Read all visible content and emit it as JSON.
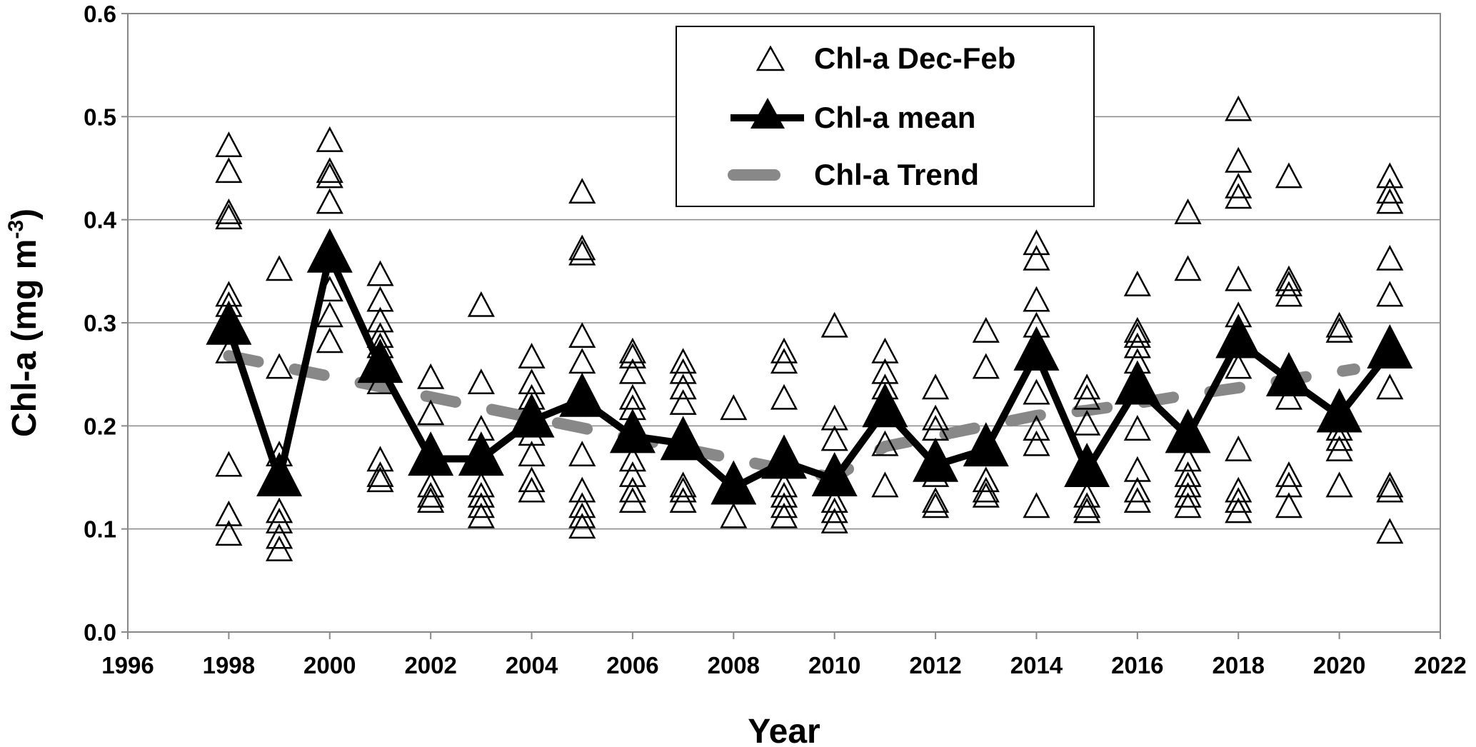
{
  "chart_data": {
    "type": "scatter",
    "title": "",
    "xlabel": "Year",
    "ylabel_main": "Chl-a (mg m",
    "ylabel_sup": "-3",
    "ylabel_end": ")",
    "xlim": [
      1996,
      2022
    ],
    "ylim": [
      0.0,
      0.6
    ],
    "x_ticks": [
      1996,
      1998,
      2000,
      2002,
      2004,
      2006,
      2008,
      2010,
      2012,
      2014,
      2016,
      2018,
      2020,
      2022
    ],
    "y_ticks": [
      "0.0",
      "0.1",
      "0.2",
      "0.3",
      "0.4",
      "0.5",
      "0.6"
    ],
    "y_tick_values": [
      0.0,
      0.1,
      0.2,
      0.3,
      0.4,
      0.5,
      0.6
    ],
    "grid": "horizontal",
    "legend_position": "top-center",
    "legend": [
      {
        "key": "raw",
        "label": "Chl-a Dec-Feb"
      },
      {
        "key": "mean",
        "label": "Chl-a mean"
      },
      {
        "key": "trend",
        "label": "Chl-a Trend"
      }
    ],
    "series": [
      {
        "key": "raw",
        "name": "Chl-a Dec-Feb",
        "style": "open-triangle",
        "color": "#000000",
        "points": [
          [
            1998,
            0.47
          ],
          [
            1998,
            0.445
          ],
          [
            1998,
            0.405
          ],
          [
            1998,
            0.4
          ],
          [
            1998,
            0.325
          ],
          [
            1998,
            0.315
          ],
          [
            1998,
            0.27
          ],
          [
            1998,
            0.16
          ],
          [
            1998,
            0.112
          ],
          [
            1998,
            0.093
          ],
          [
            1999,
            0.35
          ],
          [
            1999,
            0.255
          ],
          [
            1999,
            0.17
          ],
          [
            1999,
            0.115
          ],
          [
            1999,
            0.105
          ],
          [
            1999,
            0.09
          ],
          [
            1999,
            0.078
          ],
          [
            2000,
            0.475
          ],
          [
            2000,
            0.445
          ],
          [
            2000,
            0.44
          ],
          [
            2000,
            0.415
          ],
          [
            2000,
            0.33
          ],
          [
            2000,
            0.305
          ],
          [
            2000,
            0.28
          ],
          [
            2001,
            0.345
          ],
          [
            2001,
            0.32
          ],
          [
            2001,
            0.3
          ],
          [
            2001,
            0.285
          ],
          [
            2001,
            0.275
          ],
          [
            2001,
            0.24
          ],
          [
            2001,
            0.165
          ],
          [
            2001,
            0.15
          ],
          [
            2001,
            0.145
          ],
          [
            2002,
            0.245
          ],
          [
            2002,
            0.21
          ],
          [
            2002,
            0.14
          ],
          [
            2002,
            0.13
          ],
          [
            2002,
            0.125
          ],
          [
            2003,
            0.315
          ],
          [
            2003,
            0.24
          ],
          [
            2003,
            0.195
          ],
          [
            2003,
            0.14
          ],
          [
            2003,
            0.13
          ],
          [
            2003,
            0.12
          ],
          [
            2003,
            0.11
          ],
          [
            2004,
            0.265
          ],
          [
            2004,
            0.24
          ],
          [
            2004,
            0.225
          ],
          [
            2004,
            0.19
          ],
          [
            2004,
            0.17
          ],
          [
            2004,
            0.145
          ],
          [
            2004,
            0.135
          ],
          [
            2005,
            0.425
          ],
          [
            2005,
            0.37
          ],
          [
            2005,
            0.365
          ],
          [
            2005,
            0.285
          ],
          [
            2005,
            0.26
          ],
          [
            2005,
            0.17
          ],
          [
            2005,
            0.135
          ],
          [
            2005,
            0.12
          ],
          [
            2005,
            0.11
          ],
          [
            2005,
            0.1
          ],
          [
            2006,
            0.27
          ],
          [
            2006,
            0.265
          ],
          [
            2006,
            0.25
          ],
          [
            2006,
            0.225
          ],
          [
            2006,
            0.215
          ],
          [
            2006,
            0.165
          ],
          [
            2006,
            0.15
          ],
          [
            2006,
            0.135
          ],
          [
            2006,
            0.125
          ],
          [
            2007,
            0.26
          ],
          [
            2007,
            0.25
          ],
          [
            2007,
            0.235
          ],
          [
            2007,
            0.22
          ],
          [
            2007,
            0.14
          ],
          [
            2007,
            0.135
          ],
          [
            2007,
            0.125
          ],
          [
            2008,
            0.215
          ],
          [
            2008,
            0.11
          ],
          [
            2009,
            0.27
          ],
          [
            2009,
            0.26
          ],
          [
            2009,
            0.225
          ],
          [
            2009,
            0.14
          ],
          [
            2009,
            0.13
          ],
          [
            2009,
            0.12
          ],
          [
            2009,
            0.11
          ],
          [
            2010,
            0.295
          ],
          [
            2010,
            0.205
          ],
          [
            2010,
            0.185
          ],
          [
            2010,
            0.125
          ],
          [
            2010,
            0.115
          ],
          [
            2010,
            0.105
          ],
          [
            2011,
            0.27
          ],
          [
            2011,
            0.25
          ],
          [
            2011,
            0.235
          ],
          [
            2011,
            0.18
          ],
          [
            2011,
            0.14
          ],
          [
            2012,
            0.235
          ],
          [
            2012,
            0.205
          ],
          [
            2012,
            0.195
          ],
          [
            2012,
            0.15
          ],
          [
            2012,
            0.125
          ],
          [
            2012,
            0.12
          ],
          [
            2013,
            0.29
          ],
          [
            2013,
            0.255
          ],
          [
            2013,
            0.145
          ],
          [
            2013,
            0.135
          ],
          [
            2013,
            0.13
          ],
          [
            2014,
            0.375
          ],
          [
            2014,
            0.36
          ],
          [
            2014,
            0.32
          ],
          [
            2014,
            0.295
          ],
          [
            2014,
            0.23
          ],
          [
            2014,
            0.195
          ],
          [
            2014,
            0.18
          ],
          [
            2014,
            0.12
          ],
          [
            2015,
            0.235
          ],
          [
            2015,
            0.225
          ],
          [
            2015,
            0.2
          ],
          [
            2015,
            0.13
          ],
          [
            2015,
            0.12
          ],
          [
            2015,
            0.115
          ],
          [
            2016,
            0.335
          ],
          [
            2016,
            0.29
          ],
          [
            2016,
            0.285
          ],
          [
            2016,
            0.275
          ],
          [
            2016,
            0.26
          ],
          [
            2016,
            0.195
          ],
          [
            2016,
            0.155
          ],
          [
            2016,
            0.135
          ],
          [
            2016,
            0.125
          ],
          [
            2017,
            0.405
          ],
          [
            2017,
            0.35
          ],
          [
            2017,
            0.165
          ],
          [
            2017,
            0.15
          ],
          [
            2017,
            0.14
          ],
          [
            2017,
            0.13
          ],
          [
            2017,
            0.12
          ],
          [
            2018,
            0.505
          ],
          [
            2018,
            0.455
          ],
          [
            2018,
            0.43
          ],
          [
            2018,
            0.42
          ],
          [
            2018,
            0.34
          ],
          [
            2018,
            0.305
          ],
          [
            2018,
            0.255
          ],
          [
            2018,
            0.175
          ],
          [
            2018,
            0.135
          ],
          [
            2018,
            0.125
          ],
          [
            2018,
            0.115
          ],
          [
            2019,
            0.44
          ],
          [
            2019,
            0.34
          ],
          [
            2019,
            0.335
          ],
          [
            2019,
            0.325
          ],
          [
            2019,
            0.225
          ],
          [
            2019,
            0.15
          ],
          [
            2019,
            0.14
          ],
          [
            2019,
            0.12
          ],
          [
            2020,
            0.295
          ],
          [
            2020,
            0.29
          ],
          [
            2020,
            0.215
          ],
          [
            2020,
            0.195
          ],
          [
            2020,
            0.185
          ],
          [
            2020,
            0.175
          ],
          [
            2020,
            0.14
          ],
          [
            2021,
            0.44
          ],
          [
            2021,
            0.425
          ],
          [
            2021,
            0.415
          ],
          [
            2021,
            0.36
          ],
          [
            2021,
            0.325
          ],
          [
            2021,
            0.235
          ],
          [
            2021,
            0.14
          ],
          [
            2021,
            0.135
          ],
          [
            2021,
            0.095
          ]
        ]
      },
      {
        "key": "mean",
        "name": "Chl-a mean",
        "style": "line-filled-triangle",
        "color": "#000000",
        "x": [
          1998,
          1999,
          2000,
          2001,
          2002,
          2003,
          2004,
          2005,
          2006,
          2007,
          2008,
          2009,
          2010,
          2011,
          2012,
          2013,
          2014,
          2015,
          2016,
          2017,
          2018,
          2019,
          2020,
          2021
        ],
        "values": [
          0.295,
          0.148,
          0.365,
          0.258,
          0.168,
          0.168,
          0.205,
          0.225,
          0.19,
          0.183,
          0.14,
          0.165,
          0.148,
          0.215,
          0.162,
          0.177,
          0.27,
          0.157,
          0.237,
          0.19,
          0.282,
          0.245,
          0.21,
          0.272
        ]
      },
      {
        "key": "trend",
        "name": "Chl-a Trend",
        "style": "dashed-line",
        "color": "#888888",
        "x": [
          1998,
          2020.3
        ],
        "values": [
          0.268,
          0.255
        ],
        "polyline": [
          [
            1998,
            0.268
          ],
          [
            1999,
            0.258
          ],
          [
            2000,
            0.248
          ],
          [
            2001,
            0.238
          ],
          [
            2002,
            0.228
          ],
          [
            2003,
            0.218
          ],
          [
            2004,
            0.208
          ],
          [
            2005,
            0.198
          ],
          [
            2006,
            0.188
          ],
          [
            2007,
            0.178
          ],
          [
            2008,
            0.168
          ],
          [
            2009,
            0.158
          ],
          [
            2010,
            0.15
          ],
          [
            2011,
            0.18
          ],
          [
            2012,
            0.19
          ],
          [
            2013,
            0.2
          ],
          [
            2014,
            0.21
          ],
          [
            2015,
            0.215
          ],
          [
            2016,
            0.222
          ],
          [
            2017,
            0.23
          ],
          [
            2018,
            0.237
          ],
          [
            2019,
            0.245
          ],
          [
            2020.3,
            0.255
          ]
        ]
      }
    ]
  }
}
